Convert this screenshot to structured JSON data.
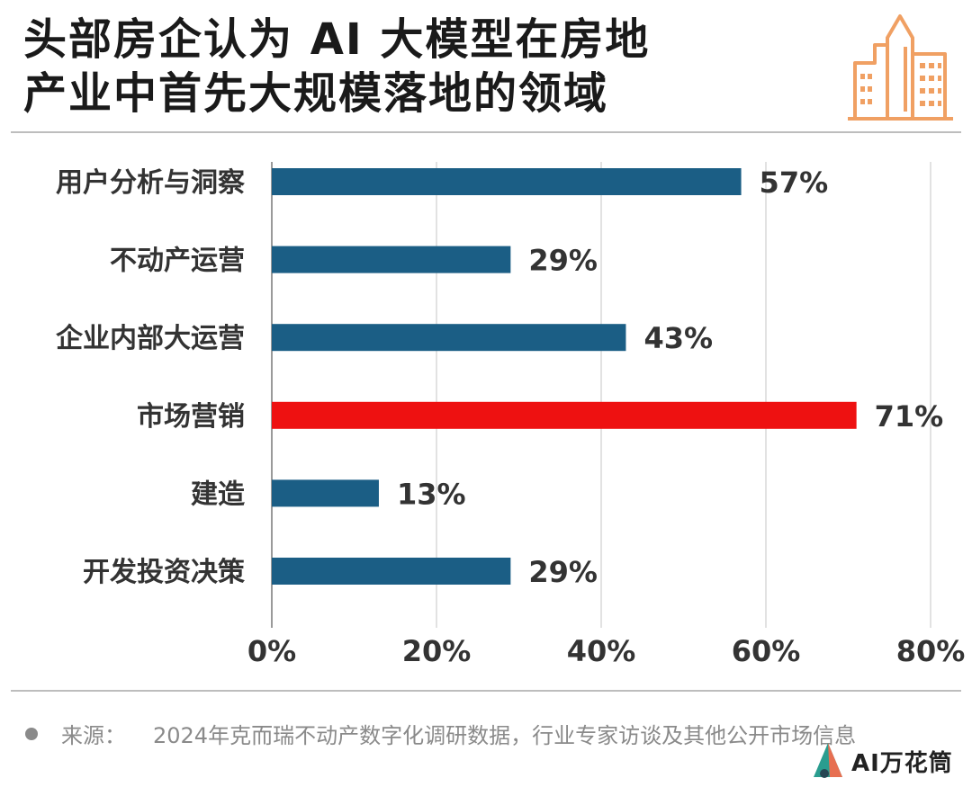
{
  "header": {
    "title_line1": "头部房企认为 AI 大模型在房地",
    "title_line2": "产业中首先大规模落地的领域"
  },
  "chart_data": {
    "type": "bar",
    "orientation": "horizontal",
    "categories": [
      "用户分析与洞察",
      "不动产运营",
      "企业内部大运营",
      "市场营销",
      "建造",
      "开发投资决策"
    ],
    "values": [
      57,
      29,
      43,
      71,
      13,
      29
    ],
    "value_labels": [
      "57%",
      "29%",
      "43%",
      "71%",
      "13%",
      "29%"
    ],
    "xlim": [
      0,
      80
    ],
    "x_ticks": [
      0,
      20,
      40,
      60,
      80
    ],
    "x_tick_labels": [
      "0%",
      "20%",
      "40%",
      "60%",
      "80%"
    ],
    "grid": "vertical",
    "colors": {
      "default": "#1b5e85",
      "highlight": "#ee1111"
    },
    "highlight_index": 3
  },
  "footer": {
    "source_label": "来源：",
    "source_text": "2024年克而瑞不动产数字化调研数据，行业专家访谈及其他公开市场信息",
    "brand": "AI万花筒"
  },
  "icons": {
    "building": "building-icon",
    "brand": "brand-logo-icon"
  },
  "colors": {
    "icon": "#f0a063",
    "rule": "#bdbdbd"
  }
}
